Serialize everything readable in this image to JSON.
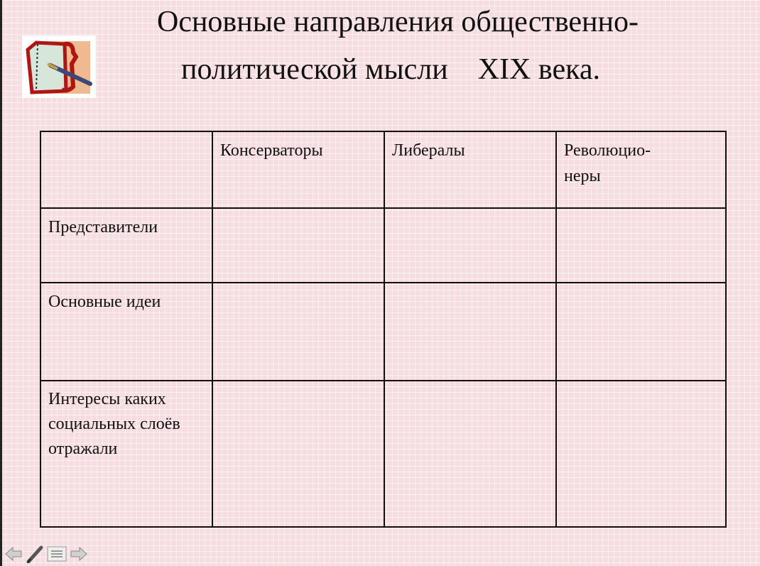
{
  "slide": {
    "title_line1": "Основные направления общественно-",
    "title_line2": "политической мысли    XIX века."
  },
  "table": {
    "headers": [
      "",
      "Консерваторы",
      "Либералы",
      "Революцио-\nнеры"
    ],
    "rows": [
      {
        "label": "Представители",
        "cells": [
          "",
          "",
          ""
        ]
      },
      {
        "label": "Основные идеи",
        "cells": [
          "",
          "",
          ""
        ]
      },
      {
        "label": "Интересы каких социальных слоёв отражали",
        "cells": [
          "",
          "",
          ""
        ]
      }
    ]
  },
  "nav": {
    "icons": [
      "arrow-left-icon",
      "pen-icon",
      "menu-icon",
      "arrow-right-icon"
    ]
  },
  "colors": {
    "background": "#f7dde1",
    "grid": "#ffffff",
    "border": "#111111"
  }
}
